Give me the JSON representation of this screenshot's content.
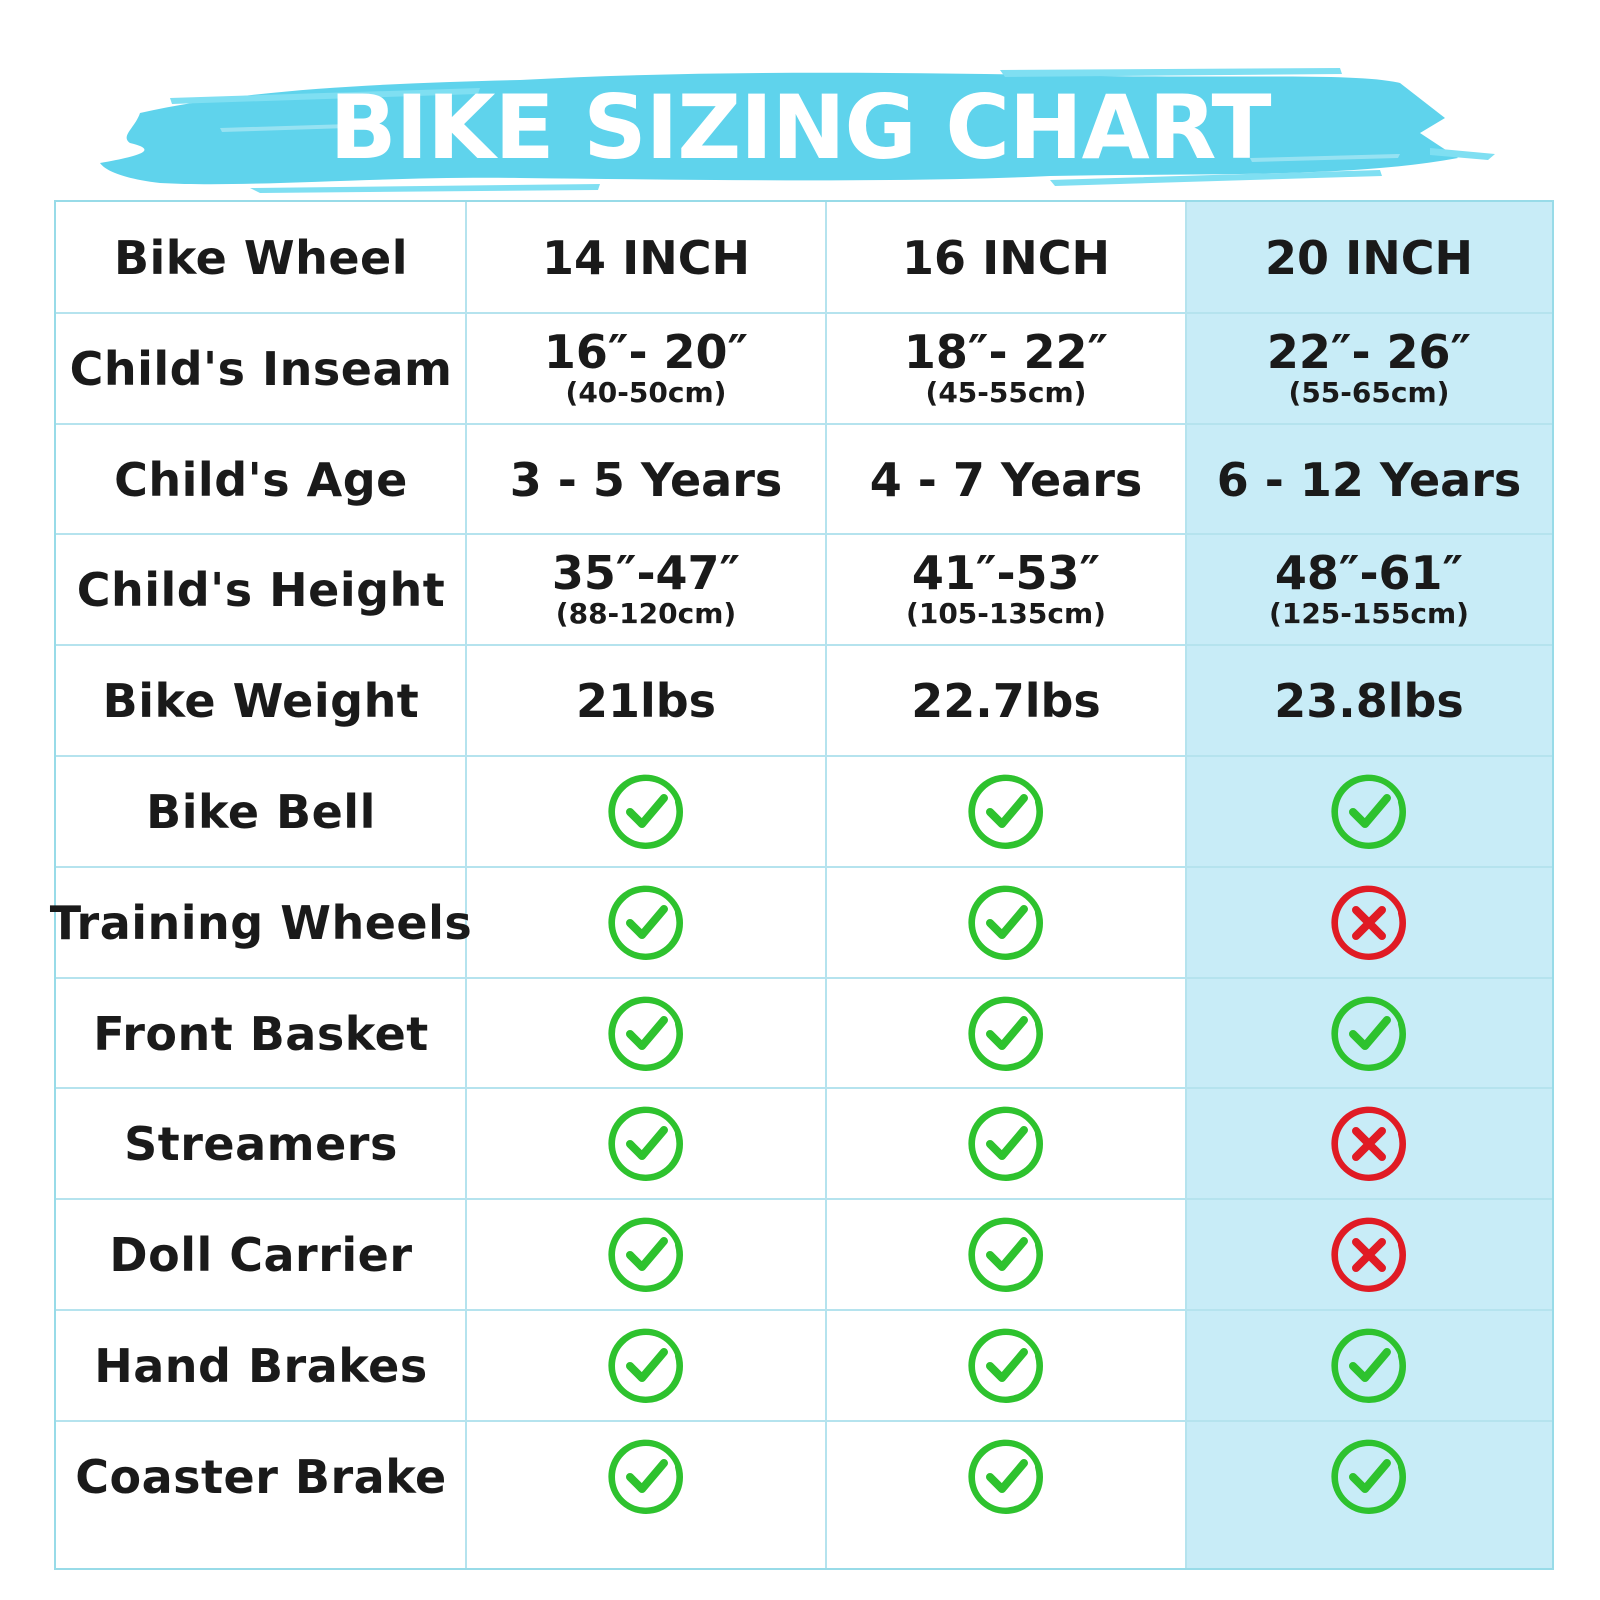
{
  "title": "BIKE SIZING CHART",
  "colors": {
    "brush": "#5fd3ec",
    "border": "#98dbe8",
    "highlight": "#c8ecf7",
    "check": "#2ec22e",
    "cross": "#e01b24"
  },
  "columns": [
    "14 INCH",
    "16 INCH",
    "20 INCH"
  ],
  "rows": [
    {
      "label": "Bike Wheel",
      "type": "header"
    },
    {
      "label": "Child's Inseam",
      "type": "measure",
      "cells": [
        {
          "main": "16″- 20″",
          "sub": "(40-50cm)"
        },
        {
          "main": "18″- 22″",
          "sub": "(45-55cm)"
        },
        {
          "main": "22″- 26″",
          "sub": "(55-65cm)"
        }
      ]
    },
    {
      "label": "Child's Age",
      "type": "text",
      "cells": [
        "3 - 5 Years",
        "4 - 7 Years",
        "6 - 12 Years"
      ]
    },
    {
      "label": "Child's Height",
      "type": "measure",
      "cells": [
        {
          "main": "35″-47″",
          "sub": "(88-120cm)"
        },
        {
          "main": "41″-53″",
          "sub": "(105-135cm)"
        },
        {
          "main": "48″-61″",
          "sub": "(125-155cm)"
        }
      ]
    },
    {
      "label": "Bike Weight",
      "type": "text",
      "cells": [
        "21lbs",
        "22.7lbs",
        "23.8lbs"
      ]
    },
    {
      "label": "Bike Bell",
      "type": "feature",
      "cells": [
        true,
        true,
        true
      ]
    },
    {
      "label": "Training Wheels",
      "type": "feature",
      "cells": [
        true,
        true,
        false
      ]
    },
    {
      "label": "Front Basket",
      "type": "feature",
      "cells": [
        true,
        true,
        true
      ]
    },
    {
      "label": "Streamers",
      "type": "feature",
      "cells": [
        true,
        true,
        false
      ]
    },
    {
      "label": "Doll Carrier",
      "type": "feature",
      "cells": [
        true,
        true,
        false
      ]
    },
    {
      "label": "Hand Brakes",
      "type": "feature",
      "cells": [
        true,
        true,
        true
      ]
    },
    {
      "label": "Coaster Brake",
      "type": "feature",
      "cells": [
        true,
        true,
        true
      ]
    }
  ]
}
